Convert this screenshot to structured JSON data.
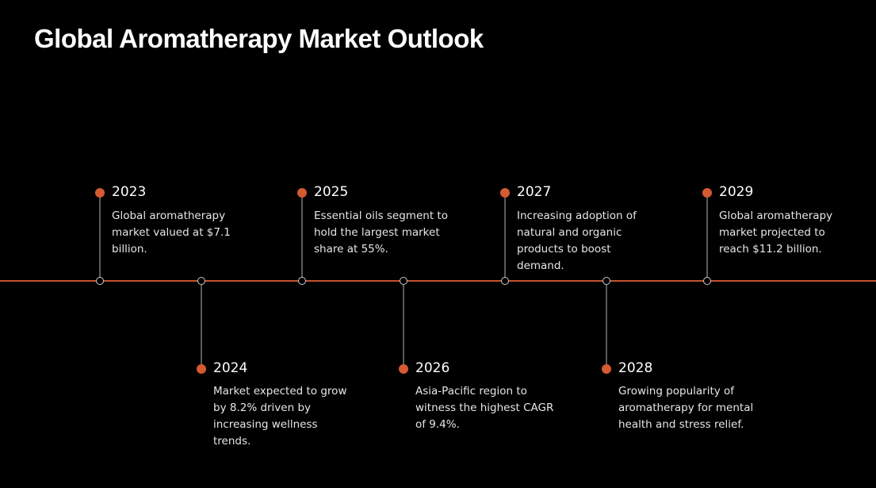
{
  "title": "Global Aromatherapy Market Outlook",
  "colors": {
    "background": "#000000",
    "accent": "#d45a32",
    "axis": "#c4522f",
    "stem": "#5a5a5a",
    "text": "#ffffff"
  },
  "milestones": [
    {
      "year": "2023",
      "text": "Global aromatherapy market valued at $7.1 billion."
    },
    {
      "year": "2024",
      "text": "Market expected to grow by 8.2% driven by increasing wellness trends."
    },
    {
      "year": "2025",
      "text": "Essential oils segment to hold the largest market share at 55%."
    },
    {
      "year": "2026",
      "text": "Asia-Pacific region to witness the highest CAGR of 9.4%."
    },
    {
      "year": "2027",
      "text": "Increasing adoption of natural and organic products to boost demand."
    },
    {
      "year": "2028",
      "text": "Growing popularity of aromatherapy for mental health and stress relief."
    },
    {
      "year": "2029",
      "text": "Global aromatherapy market projected to reach $11.2 billion."
    }
  ]
}
